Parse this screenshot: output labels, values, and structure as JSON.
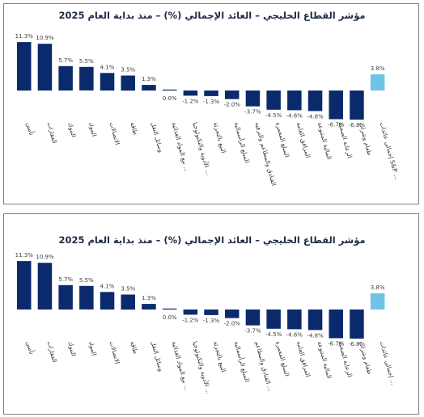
{
  "chart_data": [
    {
      "type": "bar",
      "title": "مؤشر القطاع الخليجي – العائد الإجمالي (%) – منذ بداية العام 2025",
      "categories": [
        "تأمين",
        "العقارات",
        "البنوك",
        "المواد",
        "الاتصالات",
        "طاقة",
        "وسائل النقل",
        "بيع المواد الغذائية ...",
        "الأدوية والتكنولوجيا ...",
        "البيع بالتجزئة",
        "السلع الرأسمالية",
        "الفنادق والمطاعم والترفيه",
        "السلع المعمرة",
        "المرافق العامة",
        "المالية المتنوعة",
        "الرعاية الصحية",
        "طعام وشراب",
        "إجمالي عائدات S&P ..."
      ],
      "values": [
        11.3,
        10.9,
        5.7,
        5.5,
        4.1,
        3.5,
        1.3,
        0.0,
        -1.2,
        -1.3,
        -2.0,
        -3.7,
        -4.5,
        -4.6,
        -4.8,
        -6.7,
        -6.8,
        3.8
      ],
      "value_labels": [
        "11.3%",
        "10.9%",
        "5.7%",
        "5.5%",
        "4.1%",
        "3.5%",
        "1.3%",
        "0.0%",
        "-1.2%",
        "-1.3%",
        "-2.0%",
        "-3.7%",
        "-4.5%",
        "-4.6%",
        "-4.8%",
        "-6.7%",
        "-6.8%",
        "3.8%"
      ],
      "colors": {
        "sector": "#0a2a6b",
        "benchmark": "#6fc3e8"
      },
      "benchmark_index": 17,
      "ylim": [
        -7,
        12
      ],
      "grid": false,
      "legend": "none"
    },
    {
      "type": "bar",
      "title": "مؤشر القطاع الخليجي – العائد الإجمالي (%) – منذ بداية العام 2025",
      "categories": [
        "تأمين",
        "العقارات",
        "البنوك",
        "المواد",
        "الاتصالات",
        "طاقة",
        "وسائل النقل",
        "بيع المواد الغذائية ...",
        "الأدوية والتكنولوجيا ...",
        "البيع بالتجزئة",
        "السلع الرأسمالية",
        "الفنادق والمطاعم ...",
        "السلع المعمرة",
        "المرافق العامة",
        "المالية المتنوعة",
        "الرعاية الصحية",
        "طعام وشراب",
        "إجمالي عائدات ..."
      ],
      "values": [
        11.3,
        10.9,
        5.7,
        5.5,
        4.1,
        3.5,
        1.3,
        0.0,
        -1.2,
        -1.3,
        -2.0,
        -3.7,
        -4.5,
        -4.6,
        -4.8,
        -6.7,
        -6.8,
        3.8
      ],
      "value_labels": [
        "11.3%",
        "10.9%",
        "5.7%",
        "5.5%",
        "4.1%",
        "3.5%",
        "1.3%",
        "0.0%",
        "-1.2%",
        "-1.3%",
        "-2.0%",
        "-3.7%",
        "-4.5%",
        "-4.6%",
        "-4.8%",
        "-6.7%",
        "-6.8%",
        "3.8%"
      ],
      "colors": {
        "sector": "#0a2a6b",
        "benchmark": "#6fc3e8"
      },
      "benchmark_index": 17,
      "ylim": [
        -7,
        12
      ],
      "grid": false,
      "legend": "none"
    }
  ]
}
